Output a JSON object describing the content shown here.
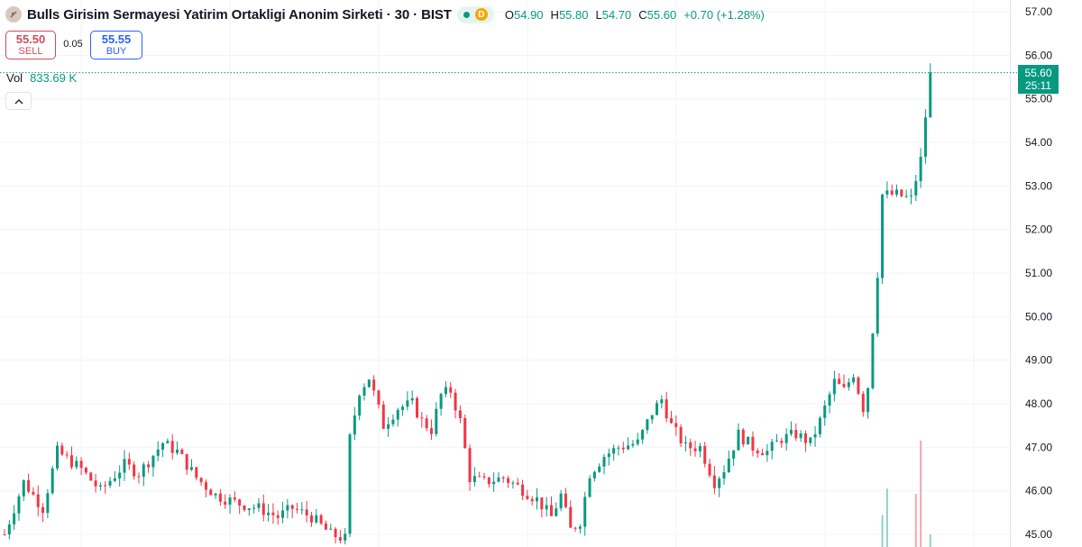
{
  "header": {
    "title": "Bulls Girisim Sermayesi Yatirim Ortakligi Anonim Sirketi · 30 · BIST",
    "market_badge": "D",
    "ohlc": [
      {
        "key": "O",
        "value": "54.90"
      },
      {
        "key": "H",
        "value": "55.80"
      },
      {
        "key": "L",
        "value": "54.70"
      },
      {
        "key": "C",
        "value": "55.60"
      },
      {
        "key": "",
        "value": "+0.70 (+1.28%)"
      }
    ]
  },
  "trade": {
    "sell_price": "55.50",
    "sell_label": "SELL",
    "spread": "0.05",
    "buy_price": "55.55",
    "buy_label": "BUY"
  },
  "volume": {
    "label": "Vol",
    "value": "833.69 K"
  },
  "price_tag": {
    "price": "55.60",
    "countdown": "25:11"
  },
  "colors": {
    "up": "#089981",
    "down": "#f23645",
    "grid": "#f0f3fa"
  },
  "chart_data": {
    "type": "candlestick",
    "interval": "30",
    "y_ticks": [
      "57.00",
      "56.00",
      "55.00",
      "54.00",
      "53.00",
      "52.00",
      "51.00",
      "50.00",
      "49.00",
      "48.00",
      "47.00",
      "46.00",
      "45.00"
    ],
    "ylim": [
      44.7,
      57.3
    ],
    "last_price": 55.6,
    "close_path": [
      [
        0,
        45.0
      ],
      [
        4,
        46.2
      ],
      [
        8,
        45.6
      ],
      [
        11,
        46.9
      ],
      [
        16,
        46.5
      ],
      [
        20,
        46.0
      ],
      [
        25,
        46.6
      ],
      [
        28,
        46.4
      ],
      [
        33,
        47.1
      ],
      [
        36,
        46.9
      ],
      [
        40,
        46.3
      ],
      [
        44,
        45.9
      ],
      [
        49,
        45.7
      ],
      [
        53,
        45.6
      ],
      [
        57,
        45.4
      ],
      [
        60,
        45.6
      ],
      [
        64,
        45.4
      ],
      [
        68,
        45.0
      ],
      [
        71,
        44.9
      ],
      [
        72,
        47.2
      ],
      [
        74,
        48.3
      ],
      [
        76,
        48.6
      ],
      [
        79,
        47.5
      ],
      [
        82,
        47.9
      ],
      [
        85,
        48.0
      ],
      [
        87,
        47.6
      ],
      [
        89,
        47.4
      ],
      [
        91,
        48.2
      ],
      [
        93,
        48.3
      ],
      [
        95,
        47.6
      ],
      [
        97,
        46.3
      ],
      [
        100,
        46.2
      ],
      [
        104,
        46.3
      ],
      [
        107,
        46.1
      ],
      [
        111,
        45.8
      ],
      [
        114,
        45.4
      ],
      [
        116,
        45.9
      ],
      [
        118,
        45.1
      ],
      [
        120,
        45.3
      ],
      [
        122,
        46.4
      ],
      [
        125,
        46.8
      ],
      [
        128,
        47.0
      ],
      [
        132,
        47.1
      ],
      [
        135,
        47.8
      ],
      [
        137,
        48.1
      ],
      [
        139,
        47.5
      ],
      [
        142,
        47.0
      ],
      [
        145,
        47.0
      ],
      [
        148,
        46.2
      ],
      [
        150,
        46.5
      ],
      [
        153,
        47.3
      ],
      [
        156,
        47.0
      ],
      [
        159,
        46.9
      ],
      [
        162,
        47.2
      ],
      [
        165,
        47.3
      ],
      [
        168,
        47.1
      ],
      [
        170,
        47.6
      ],
      [
        173,
        48.5
      ],
      [
        175,
        48.3
      ],
      [
        177,
        48.7
      ],
      [
        179,
        47.9
      ],
      [
        180,
        48.4
      ],
      [
        182,
        51.0
      ],
      [
        183,
        52.8
      ],
      [
        186,
        52.8
      ],
      [
        189,
        52.7
      ],
      [
        191,
        53.6
      ],
      [
        193,
        55.6
      ]
    ],
    "volume": [
      {
        "bar": 183,
        "value": 0.3,
        "dir": "up"
      },
      {
        "bar": 184,
        "value": 0.55,
        "dir": "up"
      },
      {
        "bar": 190,
        "value": 0.5,
        "dir": "down"
      },
      {
        "bar": 191,
        "value": 1.0,
        "dir": "down"
      },
      {
        "bar": 193,
        "value": 0.12,
        "dir": "up"
      }
    ]
  }
}
